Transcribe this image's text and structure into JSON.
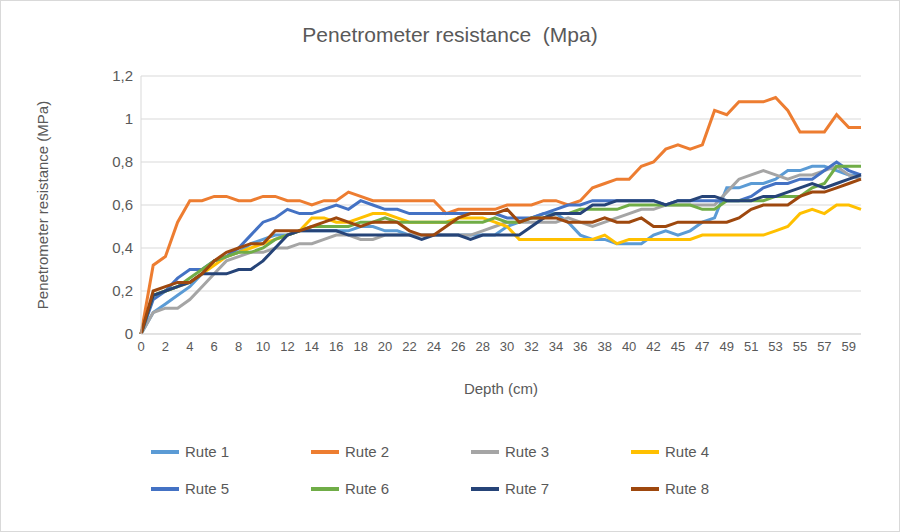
{
  "chart_data": {
    "type": "line",
    "title": "Penetrometer resistance  (Mpa)",
    "x_label": "Depth (cm)",
    "y_label": "Penetrometer resistance (MPa)",
    "categories": [
      0,
      null,
      2,
      null,
      4,
      null,
      6,
      null,
      8,
      null,
      10,
      null,
      12,
      null,
      14,
      null,
      16,
      null,
      18,
      null,
      20,
      null,
      22,
      null,
      24,
      null,
      26,
      null,
      28,
      null,
      30,
      null,
      32,
      null,
      34,
      null,
      36,
      null,
      38,
      null,
      40,
      null,
      42,
      null,
      45,
      null,
      47,
      null,
      49,
      null,
      51,
      null,
      53,
      null,
      55,
      null,
      57,
      null,
      59,
      null
    ],
    "ylim": [
      0,
      1.2
    ],
    "yticks": [
      0,
      {
        "value": 0.2,
        "label": "0,2"
      },
      {
        "value": 0.4,
        "label": "0,4"
      },
      {
        "value": 0.6,
        "label": "0,6"
      },
      {
        "value": 0.8,
        "label": "0,8"
      },
      1,
      {
        "value": 1.2,
        "label": "1,2"
      }
    ],
    "grid": true,
    "legend": "bottom",
    "series": [
      {
        "name": "Rute 1",
        "color": "#5B9BD5",
        "values": [
          0,
          0.1,
          0.14,
          0.18,
          0.22,
          0.28,
          0.34,
          0.36,
          0.38,
          0.42,
          0.44,
          0.46,
          0.46,
          0.48,
          0.48,
          0.48,
          0.48,
          0.48,
          0.5,
          0.5,
          0.48,
          0.48,
          0.46,
          0.46,
          0.46,
          0.46,
          0.46,
          0.46,
          0.46,
          0.46,
          0.5,
          0.52,
          0.54,
          0.56,
          0.56,
          0.52,
          0.46,
          0.44,
          0.44,
          0.42,
          0.42,
          0.42,
          0.46,
          0.48,
          0.46,
          0.48,
          0.52,
          0.54,
          0.68,
          0.68,
          0.7,
          0.7,
          0.72,
          0.76,
          0.76,
          0.78,
          0.78,
          0.76,
          0.74,
          0.74
        ]
      },
      {
        "name": "Rute 2",
        "color": "#ED7D31",
        "values": [
          0,
          0.32,
          0.36,
          0.52,
          0.62,
          0.62,
          0.64,
          0.64,
          0.62,
          0.62,
          0.64,
          0.64,
          0.62,
          0.62,
          0.6,
          0.62,
          0.62,
          0.66,
          0.64,
          0.62,
          0.62,
          0.62,
          0.62,
          0.62,
          0.62,
          0.56,
          0.58,
          0.58,
          0.58,
          0.58,
          0.6,
          0.6,
          0.6,
          0.62,
          0.62,
          0.6,
          0.62,
          0.68,
          0.7,
          0.72,
          0.72,
          0.78,
          0.8,
          0.86,
          0.88,
          0.86,
          0.88,
          1.04,
          1.02,
          1.08,
          1.08,
          1.08,
          1.1,
          1.04,
          0.94,
          0.94,
          0.94,
          1.02,
          0.96,
          0.96
        ]
      },
      {
        "name": "Rute 3",
        "color": "#A5A5A5",
        "values": [
          0,
          0.1,
          0.12,
          0.12,
          0.16,
          0.22,
          0.28,
          0.34,
          0.36,
          0.38,
          0.38,
          0.4,
          0.4,
          0.42,
          0.42,
          0.44,
          0.46,
          0.46,
          0.44,
          0.44,
          0.46,
          0.46,
          0.46,
          0.46,
          0.46,
          0.46,
          0.46,
          0.46,
          0.48,
          0.5,
          0.52,
          0.52,
          0.52,
          0.52,
          0.52,
          0.54,
          0.52,
          0.5,
          0.52,
          0.54,
          0.56,
          0.58,
          0.58,
          0.6,
          0.6,
          0.6,
          0.6,
          0.6,
          0.66,
          0.72,
          0.74,
          0.76,
          0.74,
          0.72,
          0.74,
          0.74,
          0.76,
          0.78,
          0.74,
          0.72
        ]
      },
      {
        "name": "Rute 4",
        "color": "#FFC000",
        "values": [
          0,
          0.18,
          0.2,
          0.22,
          0.24,
          0.28,
          0.32,
          0.36,
          0.38,
          0.4,
          0.42,
          0.44,
          0.46,
          0.48,
          0.54,
          0.54,
          0.52,
          0.52,
          0.54,
          0.56,
          0.56,
          0.54,
          0.52,
          0.52,
          0.52,
          0.52,
          0.54,
          0.54,
          0.54,
          0.52,
          0.5,
          0.44,
          0.44,
          0.44,
          0.44,
          0.44,
          0.44,
          0.44,
          0.46,
          0.42,
          0.44,
          0.44,
          0.44,
          0.44,
          0.44,
          0.44,
          0.46,
          0.46,
          0.46,
          0.46,
          0.46,
          0.46,
          0.48,
          0.5,
          0.56,
          0.58,
          0.56,
          0.6,
          0.6,
          0.58
        ]
      },
      {
        "name": "Rute 5",
        "color": "#4472C4",
        "values": [
          0,
          0.16,
          0.2,
          0.26,
          0.3,
          0.3,
          0.34,
          0.36,
          0.4,
          0.46,
          0.52,
          0.54,
          0.58,
          0.56,
          0.56,
          0.58,
          0.6,
          0.58,
          0.62,
          0.6,
          0.58,
          0.58,
          0.56,
          0.56,
          0.56,
          0.56,
          0.56,
          0.56,
          0.56,
          0.56,
          0.54,
          0.54,
          0.54,
          0.56,
          0.58,
          0.6,
          0.6,
          0.62,
          0.62,
          0.62,
          0.62,
          0.62,
          0.62,
          0.6,
          0.62,
          0.62,
          0.62,
          0.62,
          0.62,
          0.62,
          0.64,
          0.68,
          0.7,
          0.7,
          0.72,
          0.72,
          0.76,
          0.8,
          0.76,
          0.74
        ]
      },
      {
        "name": "Rute 6",
        "color": "#70AD47",
        "values": [
          0,
          0.18,
          0.2,
          0.22,
          0.26,
          0.3,
          0.34,
          0.36,
          0.38,
          0.38,
          0.4,
          0.44,
          0.46,
          0.48,
          0.5,
          0.5,
          0.5,
          0.5,
          0.52,
          0.52,
          0.54,
          0.52,
          0.52,
          0.52,
          0.52,
          0.52,
          0.52,
          0.52,
          0.52,
          0.54,
          0.52,
          0.52,
          0.54,
          0.54,
          0.56,
          0.56,
          0.58,
          0.58,
          0.58,
          0.58,
          0.6,
          0.6,
          0.6,
          0.6,
          0.6,
          0.6,
          0.58,
          0.58,
          0.62,
          0.62,
          0.62,
          0.62,
          0.64,
          0.64,
          0.64,
          0.68,
          0.7,
          0.78,
          0.78,
          0.78
        ]
      },
      {
        "name": "Rute 7",
        "color": "#264478",
        "values": [
          0,
          0.18,
          0.2,
          0.22,
          0.24,
          0.28,
          0.28,
          0.28,
          0.3,
          0.3,
          0.34,
          0.4,
          0.46,
          0.48,
          0.48,
          0.48,
          0.48,
          0.46,
          0.46,
          0.46,
          0.46,
          0.46,
          0.46,
          0.44,
          0.46,
          0.46,
          0.46,
          0.44,
          0.46,
          0.46,
          0.46,
          0.46,
          0.5,
          0.54,
          0.56,
          0.56,
          0.56,
          0.6,
          0.6,
          0.62,
          0.62,
          0.62,
          0.62,
          0.6,
          0.62,
          0.62,
          0.64,
          0.64,
          0.62,
          0.62,
          0.62,
          0.64,
          0.64,
          0.66,
          0.68,
          0.7,
          0.68,
          0.7,
          0.72,
          0.74
        ]
      },
      {
        "name": "Rute 8",
        "color": "#9E480E",
        "values": [
          0,
          0.2,
          0.22,
          0.24,
          0.24,
          0.28,
          0.34,
          0.38,
          0.4,
          0.42,
          0.42,
          0.48,
          0.48,
          0.48,
          0.5,
          0.52,
          0.54,
          0.52,
          0.5,
          0.52,
          0.52,
          0.52,
          0.48,
          0.46,
          0.46,
          0.5,
          0.54,
          0.56,
          0.56,
          0.56,
          0.58,
          0.52,
          0.54,
          0.54,
          0.54,
          0.52,
          0.52,
          0.52,
          0.54,
          0.52,
          0.52,
          0.54,
          0.5,
          0.5,
          0.52,
          0.52,
          0.52,
          0.52,
          0.52,
          0.54,
          0.58,
          0.6,
          0.6,
          0.6,
          0.64,
          0.66,
          0.66,
          0.68,
          0.7,
          0.72
        ]
      }
    ]
  }
}
